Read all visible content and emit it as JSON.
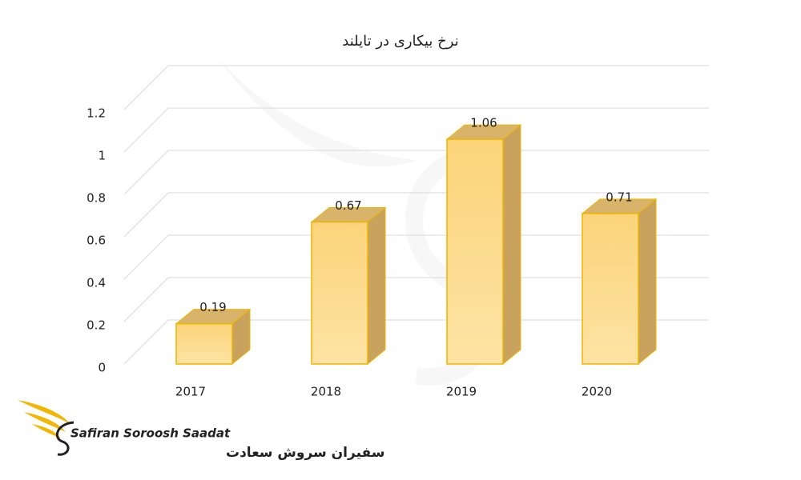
{
  "chart_data": {
    "type": "bar3d",
    "title": "نرخ بیکاری در تایلند",
    "categories": [
      "2017",
      "2018",
      "2019",
      "2020"
    ],
    "values": [
      0.19,
      0.67,
      1.06,
      0.71
    ],
    "color": "#fcd77a",
    "ylim": [
      0,
      1.2
    ],
    "yticks": [
      0,
      0.2,
      0.4,
      0.6,
      0.8,
      1,
      1.2
    ],
    "grid": true
  },
  "logo": {
    "name": "Safiran Soroosh Saadat",
    "name_fa": "سفیران سروش سعادت"
  }
}
